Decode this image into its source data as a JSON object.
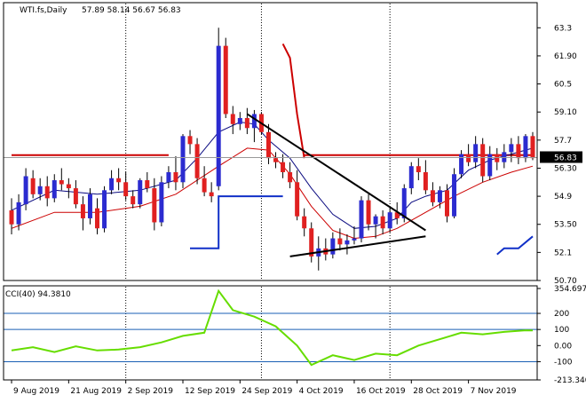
{
  "header": {
    "symbol": "WTI.fs,Daily",
    "ohlc": "57.89 58.14 56.67 56.83"
  },
  "colors": {
    "background": "#ffffff",
    "frame": "#000000",
    "grid": "#000000",
    "bull": "#2b2bd0",
    "bear": "#e02020",
    "ema_short": "#0a0a80",
    "ema_long": "#cc0000",
    "blue_line": "#1030c8",
    "red_trend": "#cc0000",
    "resistance": "#cc0000",
    "trendline": "#000000",
    "cci": "#66dd00",
    "cci_levels": "#1a5fb4",
    "price_tag_bg": "#000000",
    "price_tag_fg": "#ffffff"
  },
  "chart_data": [
    {
      "type": "candlestick",
      "title": "WTI.fs,Daily",
      "ylim": [
        50.7,
        63.8
      ],
      "y_ticks": [
        "63.3",
        "61.90",
        "60.5",
        "59.10",
        "57.7",
        "56.30",
        "54.9",
        "53.50",
        "52.1",
        "50.70"
      ],
      "x_ticks": [
        "9 Aug 2019",
        "21 Aug 2019",
        "2 Sep 2019",
        "12 Sep 2019",
        "24 Sep 2019",
        "4 Oct 2019",
        "16 Oct 2019",
        "28 Oct 2019",
        "7 Nov 2019"
      ],
      "x_tick_index": [
        0,
        8,
        16,
        24,
        32,
        40,
        48,
        56,
        64
      ],
      "vertical_grid_index": [
        16,
        35,
        53
      ],
      "last_price": "56.83",
      "candles": [
        [
          54.2,
          54.8,
          53.0,
          53.5
        ],
        [
          53.5,
          55.0,
          53.2,
          54.6
        ],
        [
          54.5,
          56.3,
          54.2,
          55.9
        ],
        [
          55.8,
          56.2,
          54.8,
          55.0
        ],
        [
          55.0,
          55.8,
          54.7,
          55.4
        ],
        [
          55.4,
          55.9,
          54.4,
          54.8
        ],
        [
          54.8,
          56.0,
          54.6,
          55.7
        ],
        [
          55.7,
          56.3,
          55.2,
          55.5
        ],
        [
          55.5,
          55.8,
          54.8,
          55.3
        ],
        [
          55.3,
          55.7,
          54.3,
          54.5
        ],
        [
          54.5,
          54.9,
          53.2,
          53.8
        ],
        [
          53.8,
          55.3,
          53.5,
          55.0
        ],
        [
          54.3,
          54.8,
          53.0,
          53.3
        ],
        [
          53.3,
          55.4,
          53.1,
          55.2
        ],
        [
          55.2,
          56.2,
          55.0,
          55.8
        ],
        [
          55.8,
          56.3,
          55.2,
          55.6
        ],
        [
          55.6,
          56.1,
          54.7,
          54.9
        ],
        [
          54.9,
          55.2,
          54.3,
          54.5
        ],
        [
          54.5,
          55.8,
          54.3,
          55.7
        ],
        [
          55.7,
          56.1,
          55.1,
          55.3
        ],
        [
          55.3,
          55.8,
          53.2,
          53.6
        ],
        [
          53.6,
          55.9,
          53.4,
          55.6
        ],
        [
          55.6,
          56.4,
          55.3,
          56.1
        ],
        [
          56.1,
          56.9,
          55.2,
          55.6
        ],
        [
          55.6,
          58.0,
          55.3,
          57.9
        ],
        [
          57.9,
          58.2,
          57.0,
          57.5
        ],
        [
          57.5,
          57.8,
          55.5,
          55.8
        ],
        [
          55.8,
          56.4,
          54.9,
          55.1
        ],
        [
          55.1,
          55.6,
          54.6,
          54.9
        ],
        [
          55.4,
          63.3,
          55.2,
          62.4
        ],
        [
          62.4,
          62.8,
          58.8,
          59.0
        ],
        [
          59.0,
          59.4,
          58.0,
          58.5
        ],
        [
          58.5,
          59.1,
          58.2,
          58.8
        ],
        [
          58.8,
          59.3,
          58.0,
          58.3
        ],
        [
          58.3,
          59.2,
          57.6,
          59.0
        ],
        [
          59.0,
          59.1,
          58.0,
          58.1
        ],
        [
          58.1,
          58.5,
          56.5,
          56.8
        ],
        [
          56.8,
          57.1,
          56.3,
          56.6
        ],
        [
          56.6,
          57.0,
          55.8,
          56.1
        ],
        [
          56.1,
          56.6,
          55.3,
          55.6
        ],
        [
          55.6,
          56.2,
          53.7,
          53.9
        ],
        [
          53.9,
          54.3,
          52.9,
          53.3
        ],
        [
          53.3,
          53.6,
          51.6,
          51.9
        ],
        [
          51.9,
          52.9,
          51.2,
          52.3
        ],
        [
          52.3,
          52.8,
          51.7,
          52.0
        ],
        [
          52.0,
          53.1,
          51.8,
          52.8
        ],
        [
          52.8,
          53.3,
          52.2,
          52.5
        ],
        [
          52.5,
          53.0,
          52.0,
          52.7
        ],
        [
          52.7,
          53.4,
          52.5,
          52.8
        ],
        [
          52.8,
          54.9,
          52.6,
          54.7
        ],
        [
          54.7,
          55.0,
          53.2,
          53.5
        ],
        [
          53.5,
          54.0,
          52.8,
          53.9
        ],
        [
          53.9,
          54.2,
          53.0,
          53.3
        ],
        [
          53.3,
          54.4,
          53.1,
          54.1
        ],
        [
          54.1,
          54.6,
          53.5,
          53.8
        ],
        [
          53.8,
          55.5,
          53.6,
          55.3
        ],
        [
          55.3,
          56.6,
          55.0,
          56.4
        ],
        [
          56.4,
          56.8,
          55.7,
          56.1
        ],
        [
          56.1,
          56.7,
          55.0,
          55.2
        ],
        [
          55.2,
          55.6,
          54.4,
          54.6
        ],
        [
          54.6,
          55.4,
          54.3,
          55.2
        ],
        [
          55.2,
          55.5,
          53.6,
          53.9
        ],
        [
          53.9,
          56.3,
          53.8,
          56.0
        ],
        [
          56.0,
          57.2,
          55.8,
          57.0
        ],
        [
          57.0,
          57.5,
          56.4,
          56.6
        ],
        [
          56.6,
          57.9,
          56.3,
          57.5
        ],
        [
          57.5,
          57.8,
          55.6,
          55.9
        ],
        [
          55.9,
          57.4,
          55.7,
          57.0
        ],
        [
          57.0,
          57.3,
          56.2,
          56.6
        ],
        [
          56.6,
          57.5,
          56.3,
          57.1
        ],
        [
          57.1,
          57.8,
          56.6,
          57.5
        ],
        [
          57.5,
          57.9,
          56.5,
          56.8
        ],
        [
          56.8,
          58.0,
          56.6,
          57.9
        ],
        [
          57.9,
          58.1,
          56.7,
          56.8
        ]
      ],
      "ema_short": [
        [
          0,
          54.2
        ],
        [
          6,
          55.2
        ],
        [
          12,
          55.0
        ],
        [
          18,
          55.2
        ],
        [
          23,
          55.7
        ],
        [
          26,
          56.8
        ],
        [
          29,
          58.1
        ],
        [
          32,
          58.6
        ],
        [
          34,
          58.5
        ],
        [
          36,
          57.7
        ],
        [
          39,
          56.8
        ],
        [
          42,
          55.3
        ],
        [
          45,
          54.0
        ],
        [
          48,
          53.3
        ],
        [
          51,
          53.4
        ],
        [
          54,
          53.8
        ],
        [
          56,
          54.6
        ],
        [
          58,
          54.9
        ],
        [
          61,
          55.2
        ],
        [
          64,
          56.2
        ],
        [
          67,
          56.7
        ],
        [
          71,
          57.1
        ],
        [
          73,
          57.3
        ]
      ],
      "ema_long": [
        [
          0,
          53.3
        ],
        [
          6,
          54.1
        ],
        [
          12,
          54.1
        ],
        [
          18,
          54.4
        ],
        [
          23,
          55.0
        ],
        [
          29,
          56.4
        ],
        [
          33,
          57.3
        ],
        [
          36,
          57.2
        ],
        [
          39,
          56.0
        ],
        [
          42,
          54.4
        ],
        [
          45,
          53.2
        ],
        [
          48,
          52.8
        ],
        [
          51,
          52.9
        ],
        [
          54,
          53.3
        ],
        [
          58,
          54.1
        ],
        [
          62,
          54.9
        ],
        [
          66,
          55.6
        ],
        [
          70,
          56.1
        ],
        [
          73,
          56.4
        ]
      ],
      "blue_line": [
        [
          [
            25,
            52.3
          ],
          [
            27,
            52.3
          ],
          [
            27,
            52.3
          ],
          [
            29,
            52.3
          ],
          [
            29,
            54.9
          ],
          [
            38,
            54.9
          ]
        ],
        [
          [
            68,
            52.0
          ],
          [
            69,
            52.3
          ],
          [
            71,
            52.3
          ],
          [
            73,
            52.9
          ]
        ]
      ],
      "red_trend": [
        [
          [
            38,
            62.5
          ],
          [
            39,
            61.8
          ],
          [
            40,
            59.0
          ],
          [
            41,
            56.8
          ]
        ]
      ],
      "resistance": [
        [
          [
            0,
            56.95
          ],
          [
            22,
            56.95
          ]
        ],
        [
          [
            41,
            56.95
          ],
          [
            73,
            56.95
          ]
        ]
      ],
      "trendlines": [
        [
          [
            33,
            59.0
          ],
          [
            58,
            53.2
          ]
        ],
        [
          [
            39,
            51.9
          ],
          [
            58,
            52.9
          ]
        ]
      ]
    },
    {
      "type": "line",
      "title": "CCI(40) 94.3810",
      "ylim": [
        -213.34,
        354.6973
      ],
      "y_ticks": [
        "354.6973",
        "200",
        "100",
        "0.00",
        "-100",
        "-213.340"
      ],
      "levels": [
        200,
        100,
        -100
      ],
      "current_value": 94.381,
      "series": [
        {
          "name": "CCI(40)",
          "points": [
            [
              0,
              -30
            ],
            [
              3,
              -10
            ],
            [
              6,
              -40
            ],
            [
              9,
              -5
            ],
            [
              12,
              -30
            ],
            [
              15,
              -25
            ],
            [
              18,
              -10
            ],
            [
              21,
              20
            ],
            [
              24,
              60
            ],
            [
              27,
              80
            ],
            [
              29,
              340
            ],
            [
              31,
              220
            ],
            [
              34,
              180
            ],
            [
              37,
              120
            ],
            [
              40,
              0
            ],
            [
              42,
              -120
            ],
            [
              45,
              -60
            ],
            [
              48,
              -90
            ],
            [
              51,
              -50
            ],
            [
              54,
              -60
            ],
            [
              57,
              0
            ],
            [
              60,
              40
            ],
            [
              63,
              80
            ],
            [
              66,
              70
            ],
            [
              69,
              85
            ],
            [
              72,
              95
            ],
            [
              73,
              94
            ]
          ]
        }
      ]
    }
  ]
}
